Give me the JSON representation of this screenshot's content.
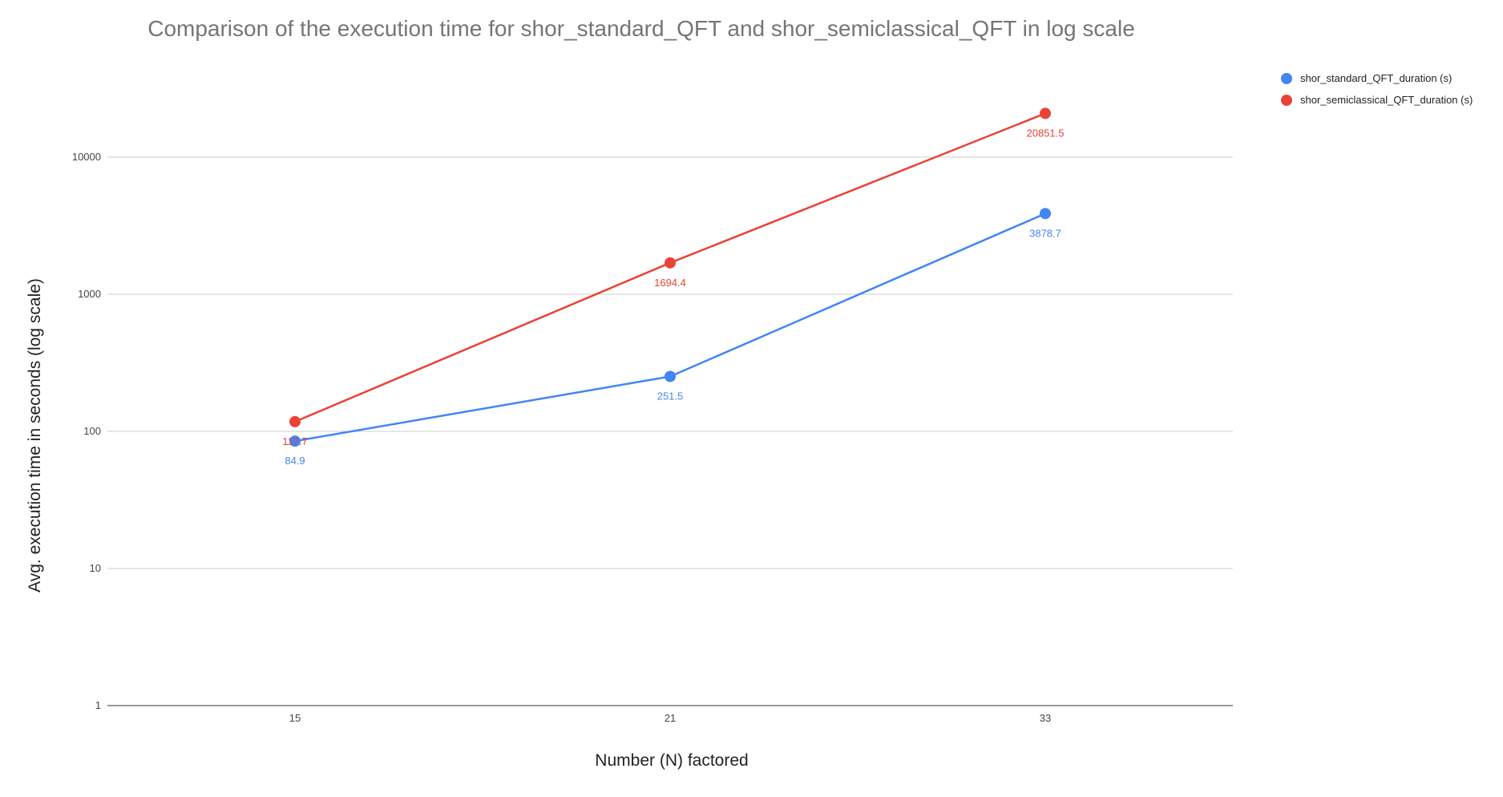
{
  "chart_data": {
    "type": "line",
    "title": "Comparison of the execution time for shor_standard_QFT and shor_semiclassical_QFT in log scale",
    "xlabel": "Number (N) factored",
    "ylabel": "Avg. execution time in seconds (log scale)",
    "y_scale": "log",
    "ylim": [
      1,
      100000
    ],
    "y_ticks": [
      "1",
      "10",
      "100",
      "1000",
      "10000"
    ],
    "categories": [
      "15",
      "21",
      "33"
    ],
    "legend_position": "right",
    "grid": true,
    "series": [
      {
        "name": "shor_standard_QFT_duration (s)",
        "color": "#4285F4",
        "values": [
          84.9,
          251.5,
          3878.7
        ],
        "labels": [
          "84.9",
          "251.5",
          "3878.7"
        ]
      },
      {
        "name": "shor_semiclassical_QFT_duration (s)",
        "color": "#EA4335",
        "values": [
          117.7,
          1694.4,
          20851.5
        ],
        "labels": [
          "117.7",
          "1694.4",
          "20851.5"
        ]
      }
    ]
  }
}
